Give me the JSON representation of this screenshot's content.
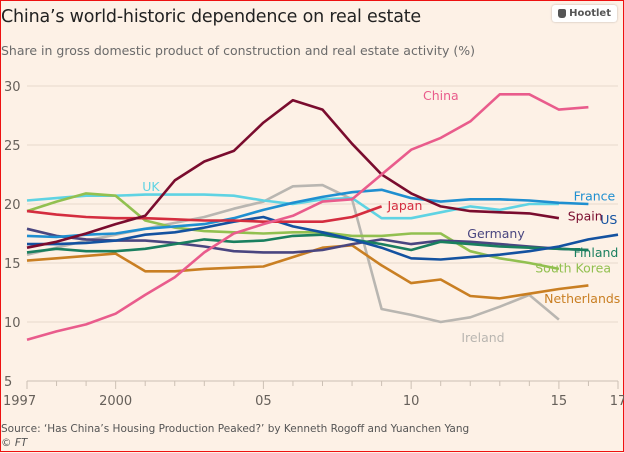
{
  "hootlet": {
    "label": "Hootlet",
    "icon": "owl-icon"
  },
  "chart_data": {
    "type": "line",
    "title": "China’s world-historic dependence on real estate",
    "subtitle": "Share in gross domestic product of construction and real estate activity (%)",
    "xlabel": "",
    "ylabel": "",
    "xlim": [
      1997,
      2017
    ],
    "ylim": [
      5,
      30
    ],
    "grid": true,
    "x_ticks": [
      1997,
      1998,
      1999,
      2000,
      2001,
      2002,
      2003,
      2004,
      2005,
      2006,
      2007,
      2008,
      2009,
      2010,
      2011,
      2012,
      2013,
      2014,
      2015,
      2016,
      2017
    ],
    "x_tick_labels": [
      {
        "x": 1997,
        "label": "1997"
      },
      {
        "x": 2000,
        "label": "2000"
      },
      {
        "x": 2005,
        "label": "05"
      },
      {
        "x": 2010,
        "label": "10"
      },
      {
        "x": 2015,
        "label": "15"
      },
      {
        "x": 2017,
        "label": "17"
      }
    ],
    "y_ticks": [
      5,
      10,
      15,
      20,
      25,
      30
    ],
    "y_tick_labels": [
      "5",
      "10",
      "15",
      "20",
      "25",
      "30"
    ],
    "series": [
      {
        "name": "Ireland",
        "color": "#b9b6b1",
        "x": [
          1997,
          1998,
          1999,
          2000,
          2001,
          2002,
          2003,
          2004,
          2005,
          2006,
          2007,
          2008,
          2009,
          2010,
          2011,
          2012,
          2013,
          2014,
          2015
        ],
        "values": [
          15.7,
          16.3,
          16.9,
          17.4,
          17.9,
          18.4,
          18.9,
          19.6,
          20.2,
          21.5,
          21.6,
          20.4,
          11.1,
          10.6,
          10.0,
          10.4,
          11.3,
          12.3,
          10.2
        ],
        "label_pos": [
          2011.7,
          8.3
        ]
      },
      {
        "name": "UK",
        "color": "#5fd3e3",
        "x": [
          1997,
          1998,
          1999,
          2000,
          2001,
          2002,
          2003,
          2004,
          2005,
          2006,
          2007,
          2008,
          2009,
          2010,
          2011,
          2012,
          2013,
          2014,
          2015
        ],
        "values": [
          20.3,
          20.5,
          20.7,
          20.7,
          20.8,
          20.8,
          20.8,
          20.7,
          20.3,
          20.0,
          20.4,
          20.5,
          18.8,
          18.8,
          19.3,
          19.8,
          19.5,
          20.0,
          20.0
        ],
        "label_pos": [
          2000.9,
          21.1
        ]
      },
      {
        "name": "Netherlands",
        "color": "#c97f23",
        "x": [
          1997,
          1998,
          1999,
          2000,
          2001,
          2002,
          2003,
          2004,
          2005,
          2006,
          2007,
          2008,
          2009,
          2010,
          2011,
          2012,
          2013,
          2014,
          2015,
          2016
        ],
        "values": [
          15.2,
          15.4,
          15.6,
          15.8,
          14.3,
          14.3,
          14.5,
          14.6,
          14.7,
          15.5,
          16.3,
          16.5,
          14.8,
          13.3,
          13.6,
          12.2,
          12.0,
          12.4,
          12.8,
          13.1
        ],
        "label_pos": [
          2014.5,
          11.6
        ]
      },
      {
        "name": "South Korea",
        "color": "#92c050",
        "x": [
          1997,
          1998,
          1999,
          2000,
          2001,
          2002,
          2003,
          2004,
          2005,
          2006,
          2007,
          2008,
          2009,
          2010,
          2011,
          2012,
          2013,
          2014,
          2015
        ],
        "values": [
          19.4,
          20.2,
          20.9,
          20.7,
          18.6,
          18.0,
          17.7,
          17.6,
          17.5,
          17.6,
          17.6,
          17.3,
          17.3,
          17.5,
          17.5,
          16.0,
          15.4,
          15.0,
          14.5
        ],
        "label_pos": [
          2014.2,
          14.2
        ]
      },
      {
        "name": "Germany",
        "color": "#4a4680",
        "x": [
          1997,
          1998,
          1999,
          2000,
          2001,
          2002,
          2003,
          2004,
          2005,
          2006,
          2007,
          2008,
          2009,
          2010,
          2011,
          2012,
          2013,
          2014,
          2015,
          2016
        ],
        "values": [
          17.9,
          17.3,
          17.0,
          16.9,
          16.9,
          16.7,
          16.4,
          16.0,
          15.9,
          15.9,
          16.1,
          16.6,
          17.0,
          16.6,
          16.9,
          16.8,
          16.6,
          16.4,
          16.2,
          16.1
        ],
        "label_pos": [
          2011.9,
          17.1
        ]
      },
      {
        "name": "Finland",
        "color": "#1a7f5f",
        "x": [
          1997,
          1998,
          1999,
          2000,
          2001,
          2002,
          2003,
          2004,
          2005,
          2006,
          2007,
          2008,
          2009,
          2010,
          2011,
          2012,
          2013,
          2014,
          2015,
          2016
        ],
        "values": [
          15.9,
          16.2,
          16.0,
          16.0,
          16.2,
          16.6,
          17.0,
          16.8,
          16.9,
          17.3,
          17.4,
          17.0,
          16.6,
          16.1,
          16.8,
          16.6,
          16.4,
          16.3,
          16.2,
          16.1
        ],
        "label_pos": [
          2015.5,
          15.5
        ]
      },
      {
        "name": "France",
        "color": "#1f8fd0",
        "x": [
          1997,
          1998,
          1999,
          2000,
          2001,
          2002,
          2003,
          2004,
          2005,
          2006,
          2007,
          2008,
          2009,
          2010,
          2011,
          2012,
          2013,
          2014,
          2015,
          2016
        ],
        "values": [
          17.3,
          17.2,
          17.4,
          17.5,
          17.9,
          18.1,
          18.3,
          18.8,
          19.5,
          20.1,
          20.6,
          21.0,
          21.2,
          20.5,
          20.2,
          20.4,
          20.4,
          20.3,
          20.1,
          20.0
        ],
        "label_pos": [
          2015.5,
          20.3
        ]
      },
      {
        "name": "US",
        "color": "#1452a0",
        "x": [
          1997,
          1998,
          1999,
          2000,
          2001,
          2002,
          2003,
          2004,
          2005,
          2006,
          2007,
          2008,
          2009,
          2010,
          2011,
          2012,
          2013,
          2014,
          2015,
          2016,
          2017
        ],
        "values": [
          16.6,
          16.6,
          16.7,
          16.9,
          17.4,
          17.6,
          18.0,
          18.5,
          18.9,
          18.1,
          17.6,
          17.0,
          16.3,
          15.4,
          15.3,
          15.5,
          15.7,
          16.0,
          16.4,
          17.0,
          17.4
        ],
        "label_pos": [
          2016.4,
          18.3
        ]
      },
      {
        "name": "Japan",
        "color": "#d42d3f",
        "x": [
          1997,
          1998,
          1999,
          2000,
          2001,
          2002,
          2003,
          2004,
          2005,
          2006,
          2007,
          2008,
          2009
        ],
        "values": [
          19.4,
          19.1,
          18.9,
          18.8,
          18.8,
          18.7,
          18.6,
          18.6,
          18.5,
          18.5,
          18.5,
          18.9,
          19.8
        ],
        "label_pos": [
          2009.2,
          19.5
        ]
      },
      {
        "name": "Spain",
        "color": "#7a0c2e",
        "x": [
          1997,
          1998,
          1999,
          2000,
          2001,
          2002,
          2003,
          2004,
          2005,
          2006,
          2007,
          2008,
          2009,
          2010,
          2011,
          2012,
          2013,
          2014,
          2015
        ],
        "values": [
          16.3,
          16.8,
          17.5,
          18.3,
          19.0,
          22.0,
          23.6,
          24.5,
          26.9,
          28.8,
          28.0,
          25.1,
          22.5,
          20.9,
          19.8,
          19.4,
          19.3,
          19.2,
          18.8
        ],
        "label_pos": [
          2015.3,
          18.6
        ]
      },
      {
        "name": "China",
        "color": "#e95c8c",
        "x": [
          1997,
          1998,
          1999,
          2000,
          2001,
          2002,
          2003,
          2004,
          2005,
          2006,
          2007,
          2008,
          2009,
          2010,
          2011,
          2012,
          2013,
          2014,
          2015,
          2016
        ],
        "values": [
          8.5,
          9.2,
          9.8,
          10.7,
          12.3,
          13.8,
          15.9,
          17.5,
          18.3,
          19.0,
          20.2,
          20.4,
          22.5,
          24.6,
          25.6,
          27.0,
          29.3,
          29.3,
          28.0,
          28.2
        ],
        "label_pos": [
          2010.4,
          28.8
        ]
      }
    ]
  },
  "footer": {
    "source": "Source: ‘Has China’s Housing Production Peaked?’ by Kenneth Rogoff and Yuanchen Yang",
    "copyright": "© FT"
  }
}
